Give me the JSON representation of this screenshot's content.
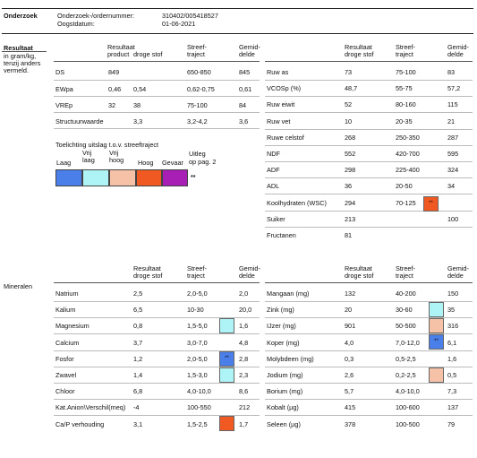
{
  "header": {
    "section": "Onderzoek",
    "order_label": "Onderzoek-/ordernummer:",
    "order_value": "310402/005418527",
    "date_label": "Oogstdatum:",
    "date_value": "01-06-2021"
  },
  "result": {
    "title": "Resultaat",
    "subtitle_lines": [
      "in gram/kg,",
      "tenzij anders",
      "vermeld."
    ],
    "left_headers": {
      "c1a": "Resultaat",
      "c1b": "product",
      "c2": "droge stof",
      "c3a": "Streef-",
      "c3b": "traject",
      "c4a": "Gemid-",
      "c4b": "delde"
    },
    "right_headers": {
      "c1a": "Resultaat",
      "c1b": "droge stof",
      "c3a": "Streef-",
      "c3b": "traject",
      "c4a": "Gemid-",
      "c4b": "delde"
    },
    "left_rows": [
      {
        "name": "DS",
        "prod": "849",
        "ds": "",
        "range": "650-850",
        "avg": "845"
      },
      {
        "name": "EWpa",
        "prod": "0,46",
        "ds": "0,54",
        "range": "0,62-0,75",
        "avg": "0,61"
      },
      {
        "name": "VREp",
        "prod": "32",
        "ds": "38",
        "range": "75-100",
        "avg": "84"
      },
      {
        "name": "Structuurwaarde",
        "prod": "",
        "ds": "3,3",
        "range": "3,2-4,2",
        "avg": "3,6"
      }
    ],
    "right_rows": [
      {
        "name": "Ruw as",
        "val": "73",
        "range": "75-100",
        "avg": "83"
      },
      {
        "name": "VCOSp (%)",
        "val": "48,7",
        "range": "55-75",
        "avg": "57,2"
      },
      {
        "name": "Ruw eiwit",
        "val": "52",
        "range": "80-160",
        "avg": "115"
      },
      {
        "name": "Ruw vet",
        "val": "10",
        "range": "20-35",
        "avg": "21"
      },
      {
        "name": "Ruwe celstof",
        "val": "268",
        "range": "250-350",
        "avg": "287"
      },
      {
        "name": "NDF",
        "val": "552",
        "range": "420-700",
        "avg": "595"
      },
      {
        "name": "ADF",
        "val": "298",
        "range": "225-400",
        "avg": "324"
      },
      {
        "name": "ADL",
        "val": "36",
        "range": "20-50",
        "avg": "34"
      },
      {
        "name": "Koolhydraten (WSC)",
        "val": "294",
        "range": "70-125",
        "avg": ""
      },
      {
        "name": "Suiker",
        "val": "213",
        "range": "",
        "avg": "100"
      },
      {
        "name": "Fructanen",
        "val": "81",
        "range": "",
        "avg": ""
      }
    ],
    "wsc_mark": "**"
  },
  "legend": {
    "title": "Toelichting uitslag t.o.v. streeftraject",
    "items": [
      {
        "label": "Laag",
        "color": "#4a7ee8"
      },
      {
        "label": "Vrij laag",
        "color": "#aef3f5"
      },
      {
        "label": "Vrij hoog",
        "color": "#f5c2a8"
      },
      {
        "label": "Hoog",
        "color": "#f05a22"
      },
      {
        "label": "Gevaar",
        "color": "#a71fb5"
      }
    ],
    "note_a": "Uitleg",
    "note_b": "op pag. 2",
    "note_mark": "**"
  },
  "minerals": {
    "title": "Mineralen",
    "left_headers": {
      "c1a": "Resultaat",
      "c1b": "droge stof",
      "c3a": "Streef-",
      "c3b": "traject",
      "c4a": "Gemid-",
      "c4b": "delde"
    },
    "right_headers": {
      "c1a": "Resultaat",
      "c1b": "droge stof",
      "c3a": "Streef-",
      "c3b": "traject",
      "c4a": "Gemid-",
      "c4b": "delde"
    },
    "left_rows": [
      {
        "name": "Natrium",
        "val": "2,5",
        "range": "2,0-5,0",
        "avg": "2,0"
      },
      {
        "name": "Kalium",
        "val": "6,5",
        "range": "10-30",
        "avg": "20,0"
      },
      {
        "name": "Magnesium",
        "val": "0,8",
        "range": "1,5-5,0",
        "avg": "1,6"
      },
      {
        "name": "Calcium",
        "val": "3,7",
        "range": "3,0-7,0",
        "avg": "4,8"
      },
      {
        "name": "Fosfor",
        "val": "1,2",
        "range": "2,0-5,0",
        "avg": "2,8"
      },
      {
        "name": "Zwavel",
        "val": "1,4",
        "range": "1,5-3,0",
        "avg": "2,3"
      },
      {
        "name": "Chloor",
        "val": "6,8",
        "range": "4,0-10,0",
        "avg": "8,6"
      },
      {
        "name": "Kat.Anion\\Verschil(meq)",
        "val": "-4",
        "range": "100-550",
        "avg": "212"
      },
      {
        "name": "Ca/P verhouding",
        "val": "3,1",
        "range": "1,5-2,5",
        "avg": "1,7"
      }
    ],
    "right_rows": [
      {
        "name": "Mangaan (mg)",
        "val": "132",
        "range": "40-200",
        "avg": "150"
      },
      {
        "name": "Zink (mg)",
        "val": "20",
        "range": "30-60",
        "avg": "35"
      },
      {
        "name": "IJzer (mg)",
        "val": "901",
        "range": "50-500",
        "avg": "316"
      },
      {
        "name": "Koper (mg)",
        "val": "4,0",
        "range": "7,0-12,0",
        "avg": "6,1"
      },
      {
        "name": "Molybdeen (mg)",
        "val": "0,3",
        "range": "0,5-2,5",
        "avg": "1,6"
      },
      {
        "name": "Jodium (mg)",
        "val": "2,6",
        "range": "0,2-2,5",
        "avg": "0,5"
      },
      {
        "name": "Borium (mg)",
        "val": "5,7",
        "range": "4,0-10,0",
        "avg": "7,3"
      },
      {
        "name": "Kobalt (µg)",
        "val": "415",
        "range": "100-600",
        "avg": "137"
      },
      {
        "name": "Seleen (µg)",
        "val": "378",
        "range": "100-500",
        "avg": "79"
      }
    ],
    "fosfor_mark": "**",
    "koper_mark": "**"
  },
  "marker_colors": {
    "vrij_laag": "#aef3f5",
    "laag": "#4a7ee8",
    "vrij_hoog": "#f5c2a8",
    "hoog": "#f05a22"
  }
}
